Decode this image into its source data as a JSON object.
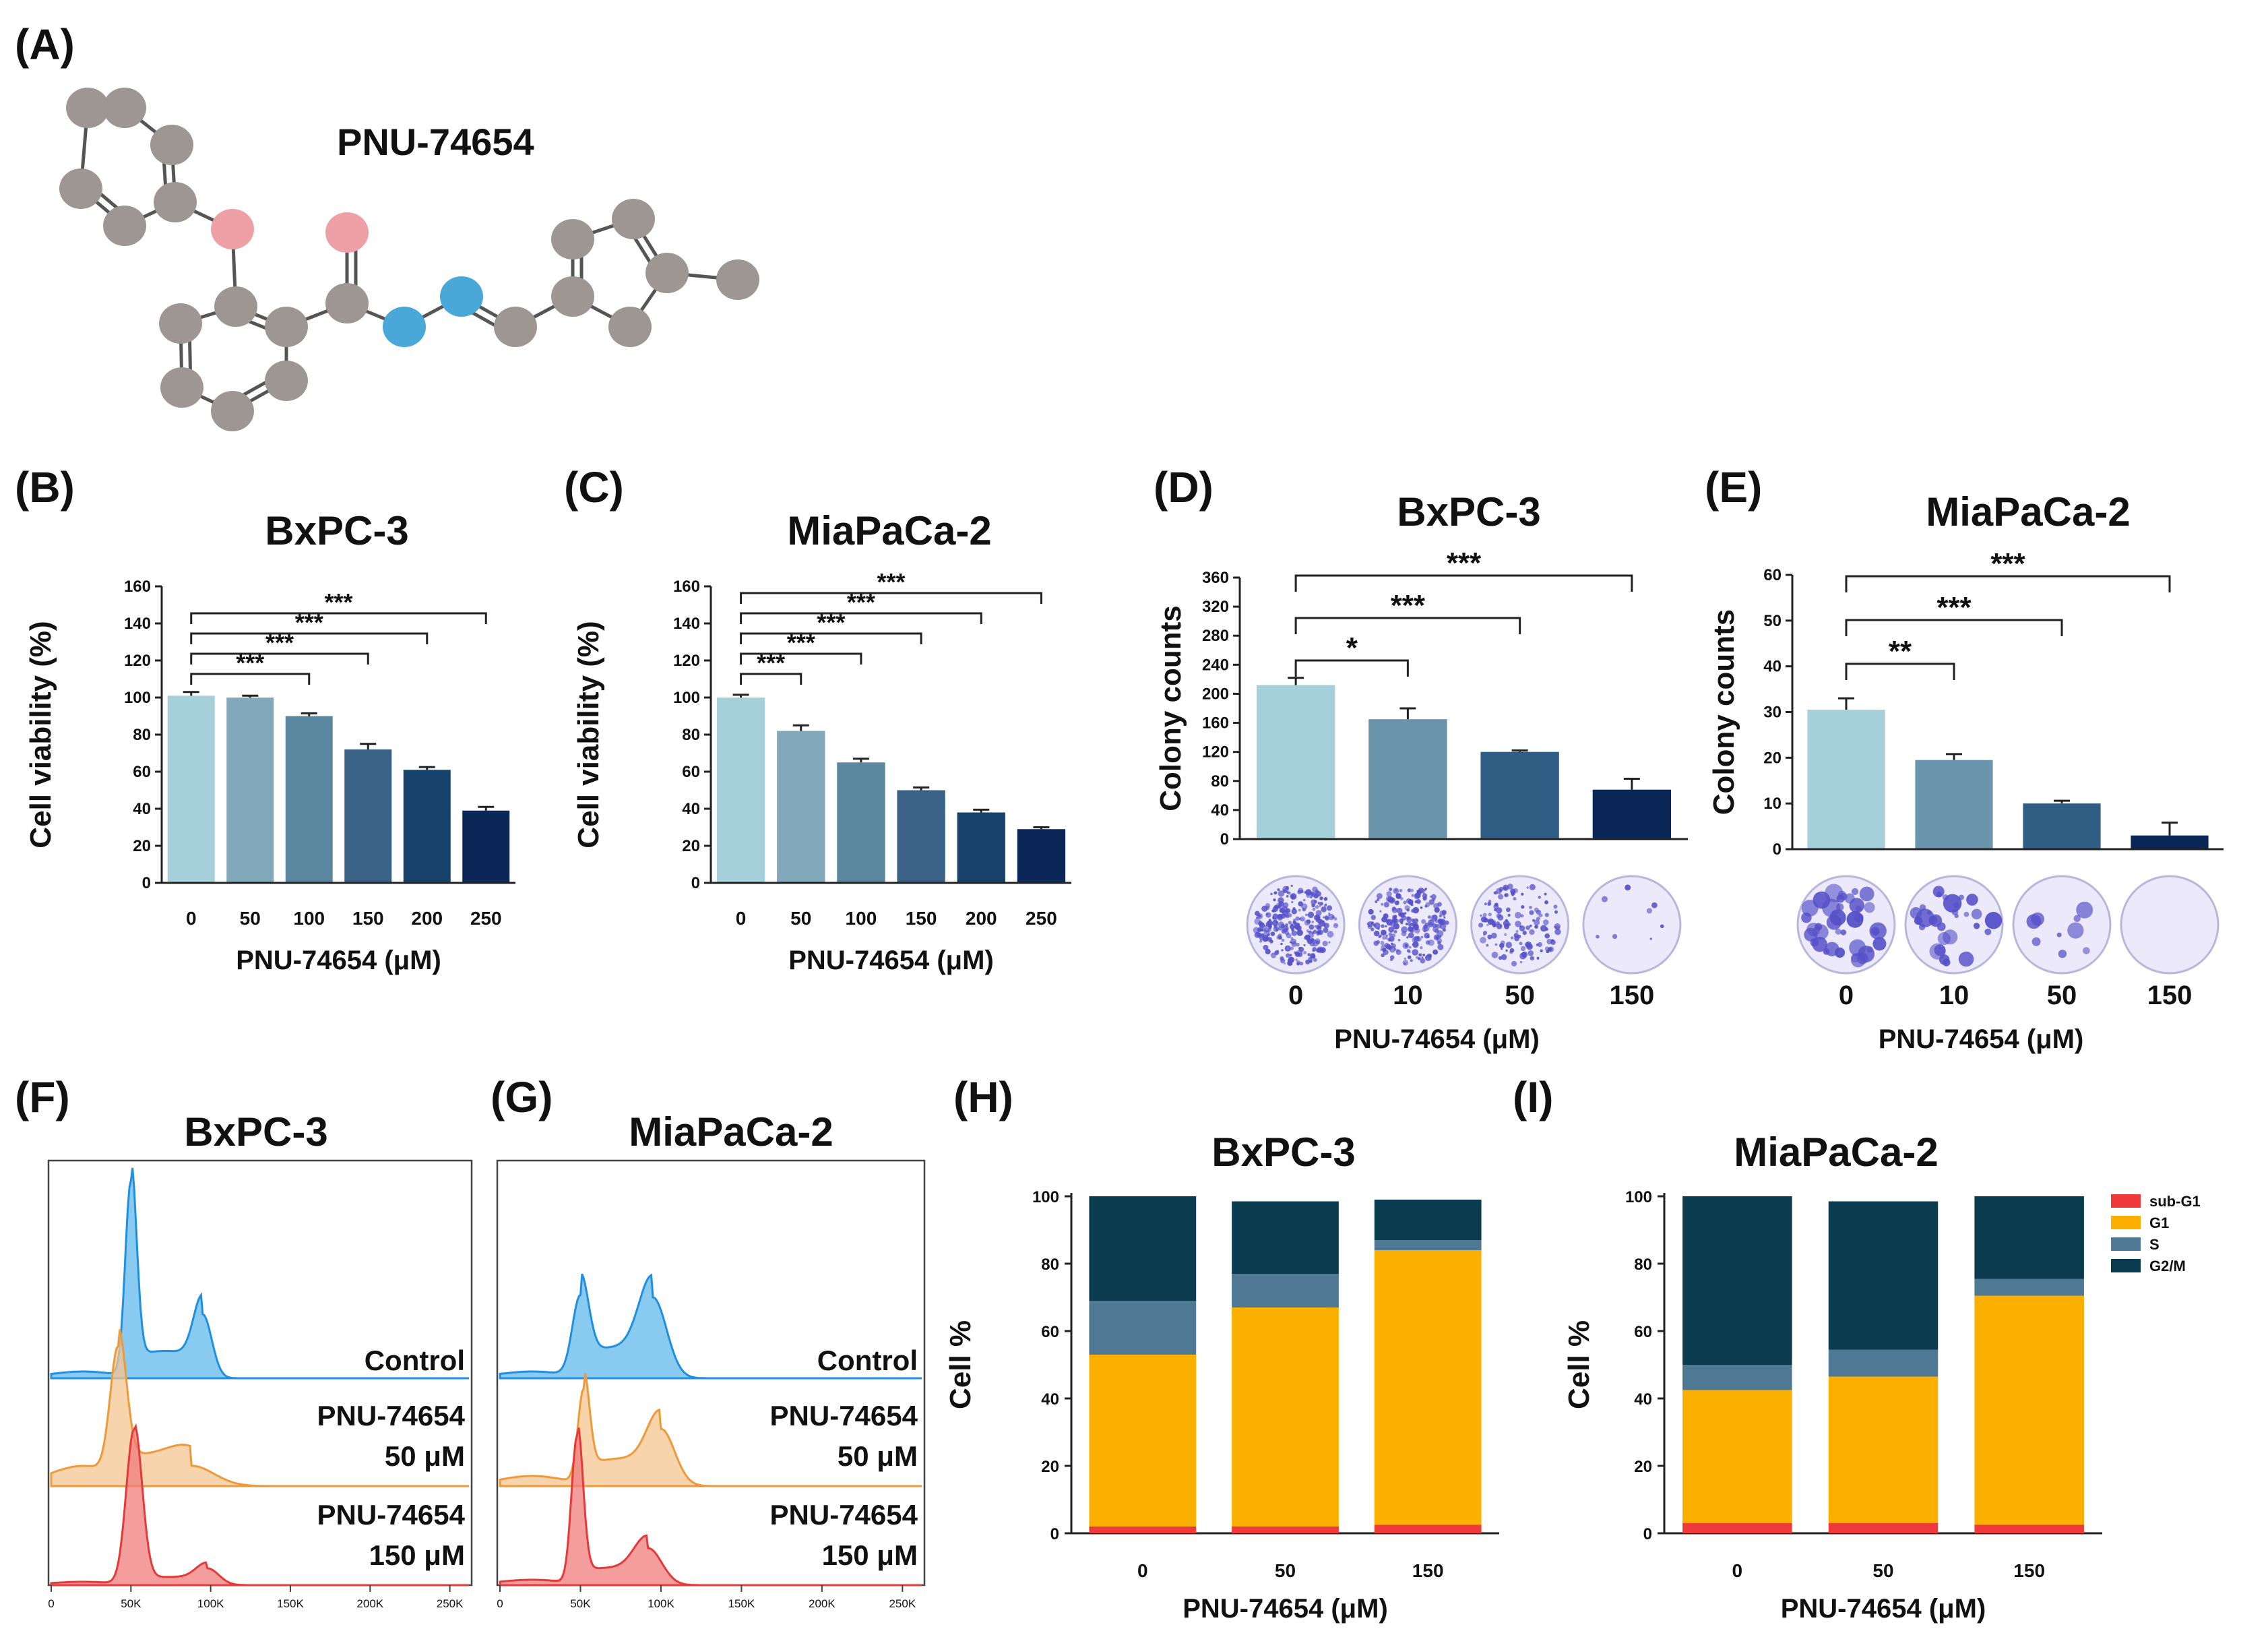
{
  "panel_A": {
    "letter": "(A)",
    "compound_label": "PNU-74654",
    "atom_colors": {
      "carbon": "#9e9692",
      "oxygen": "#eda0a6",
      "nitrogen": "#4aa8d8"
    }
  },
  "colors": {
    "bar_6": [
      "#a6d0d9",
      "#81a9bb",
      "#5c87a0",
      "#3a6287",
      "#17426b",
      "#0b2757"
    ],
    "bar_4": [
      "#a6d0d9",
      "#6a94ab",
      "#2f5d83",
      "#0b2757"
    ],
    "flow_control": "#62b8ec",
    "flow_50": "#f6c690",
    "flow_150": "#ef7c7c",
    "sub_g1": "#ee3a3a",
    "g1": "#fbb000",
    "s": "#4f7895",
    "g2m": "#0b3b4f",
    "colony_dye": "#5550c8"
  },
  "chart_data": [
    {
      "panel": "(B)",
      "type": "bar",
      "title": "BxPC-3",
      "categories": [
        "0",
        "50",
        "100",
        "150",
        "200",
        "250"
      ],
      "values": [
        101,
        100,
        90,
        72,
        61,
        39
      ],
      "errors": [
        2,
        1,
        1.5,
        3,
        1.5,
        2
      ],
      "ylabel": "Cell viability (%)",
      "xlabel": "PNU-74654  (μM)",
      "ylim": [
        0,
        160
      ],
      "yticks": [
        0,
        20,
        40,
        60,
        80,
        100,
        120,
        140,
        160
      ],
      "significance": [
        {
          "from": "0",
          "to": "100",
          "label": "***"
        },
        {
          "from": "0",
          "to": "150",
          "label": "***"
        },
        {
          "from": "0",
          "to": "200",
          "label": "***"
        },
        {
          "from": "0",
          "to": "250",
          "label": "***"
        }
      ]
    },
    {
      "panel": "(C)",
      "type": "bar",
      "title": "MiaPaCa-2",
      "categories": [
        "0",
        "50",
        "100",
        "150",
        "200",
        "250"
      ],
      "values": [
        100,
        82,
        65,
        50,
        38,
        29
      ],
      "errors": [
        1.5,
        3,
        2,
        1.5,
        1.5,
        1
      ],
      "ylabel": "Cell viability (%)",
      "xlabel": "PNU-74654  (μM)",
      "ylim": [
        0,
        160
      ],
      "yticks": [
        0,
        20,
        40,
        60,
        80,
        100,
        120,
        140,
        160
      ],
      "significance": [
        {
          "from": "0",
          "to": "50",
          "label": "***"
        },
        {
          "from": "0",
          "to": "100",
          "label": "***"
        },
        {
          "from": "0",
          "to": "150",
          "label": "***"
        },
        {
          "from": "0",
          "to": "200",
          "label": "***"
        },
        {
          "from": "0",
          "to": "250",
          "label": "***"
        }
      ]
    },
    {
      "panel": "(D)",
      "type": "bar",
      "title": "BxPC-3",
      "categories": [
        "0",
        "10",
        "50",
        "150"
      ],
      "values": [
        212,
        165,
        120,
        68
      ],
      "errors": [
        10,
        15,
        2,
        15
      ],
      "ylabel": "Colony counts",
      "xlabel": "PNU-74654 (μM)",
      "ylim": [
        0,
        360
      ],
      "yticks": [
        0,
        40,
        80,
        120,
        160,
        200,
        240,
        280,
        320,
        360
      ],
      "significance": [
        {
          "from": "0",
          "to": "10",
          "label": "*"
        },
        {
          "from": "0",
          "to": "50",
          "label": "***"
        },
        {
          "from": "0",
          "to": "150",
          "label": "***"
        }
      ]
    },
    {
      "panel": "(E)",
      "type": "bar",
      "title": "MiaPaCa-2",
      "categories": [
        "0",
        "10",
        "50",
        "150"
      ],
      "values": [
        30.5,
        19.5,
        10,
        3
      ],
      "errors": [
        2.5,
        1.3,
        0.6,
        2.8
      ],
      "ylabel": "Colony counts",
      "xlabel": "PNU-74654 (μM)",
      "ylim": [
        0,
        60
      ],
      "yticks": [
        0,
        10,
        20,
        30,
        40,
        50,
        60
      ],
      "significance": [
        {
          "from": "0",
          "to": "10",
          "label": "**"
        },
        {
          "from": "0",
          "to": "50",
          "label": "***"
        },
        {
          "from": "0",
          "to": "150",
          "label": "***"
        }
      ]
    },
    {
      "panel": "(F)",
      "type": "area",
      "title": "BxPC-3",
      "xticks": [
        "0",
        "50K",
        "100K",
        "150K",
        "200K",
        "250K"
      ],
      "traces": [
        {
          "label_line1": "Control",
          "label_line2": "",
          "G1_peak": "50K",
          "G2M_peak": "95K"
        },
        {
          "label_line1": "PNU-74654",
          "label_line2": "50 μM",
          "G1_peak": "42K",
          "G2M_peak": "88K"
        },
        {
          "label_line1": "PNU-74654",
          "label_line2": "150 μM",
          "G1_peak": "52K",
          "G2M_peak": "98K"
        }
      ]
    },
    {
      "panel": "(G)",
      "type": "area",
      "title": "MiaPaCa-2",
      "xticks": [
        "0",
        "50K",
        "100K",
        "150K",
        "200K",
        "250K"
      ],
      "traces": [
        {
          "label_line1": "Control",
          "label_line2": "",
          "G1_peak": "50K",
          "G2M_peak": "95K"
        },
        {
          "label_line1": "PNU-74654",
          "label_line2": "50 μM",
          "G1_peak": "52K",
          "G2M_peak": "100K"
        },
        {
          "label_line1": "PNU-74654",
          "label_line2": "150 μM",
          "G1_peak": "48K",
          "G2M_peak": "92K"
        }
      ]
    },
    {
      "panel": "(H)",
      "type": "bar",
      "stacked": true,
      "title": "BxPC-3",
      "categories": [
        "0",
        "50",
        "150"
      ],
      "series": [
        {
          "name": "sub-G1",
          "values": [
            2,
            2,
            2.5
          ]
        },
        {
          "name": "G1",
          "values": [
            51,
            65,
            81.5
          ]
        },
        {
          "name": "S",
          "values": [
            16,
            10,
            3
          ]
        },
        {
          "name": "G2/M",
          "values": [
            31,
            21.5,
            12
          ]
        }
      ],
      "ylabel": "Cell %",
      "xlabel": "PNU-74654  (μM)",
      "ylim": [
        0,
        100
      ],
      "yticks": [
        0,
        20,
        40,
        60,
        80,
        100
      ]
    },
    {
      "panel": "(I)",
      "type": "bar",
      "stacked": true,
      "title": "MiaPaCa-2",
      "categories": [
        "0",
        "50",
        "150"
      ],
      "series": [
        {
          "name": "sub-G1",
          "values": [
            3,
            3,
            2.5
          ]
        },
        {
          "name": "G1",
          "values": [
            39.5,
            43.5,
            68
          ]
        },
        {
          "name": "S",
          "values": [
            7.5,
            8,
            5
          ]
        },
        {
          "name": "G2/M",
          "values": [
            50,
            44,
            24.5
          ]
        }
      ],
      "ylabel": "Cell %",
      "xlabel": "PNU-74654  (μM)",
      "ylim": [
        0,
        100
      ],
      "yticks": [
        0,
        20,
        40,
        60,
        80,
        100
      ],
      "legend": [
        "sub-G1",
        "G1",
        "S",
        "G2/M"
      ],
      "legend_position": "top-right"
    }
  ]
}
